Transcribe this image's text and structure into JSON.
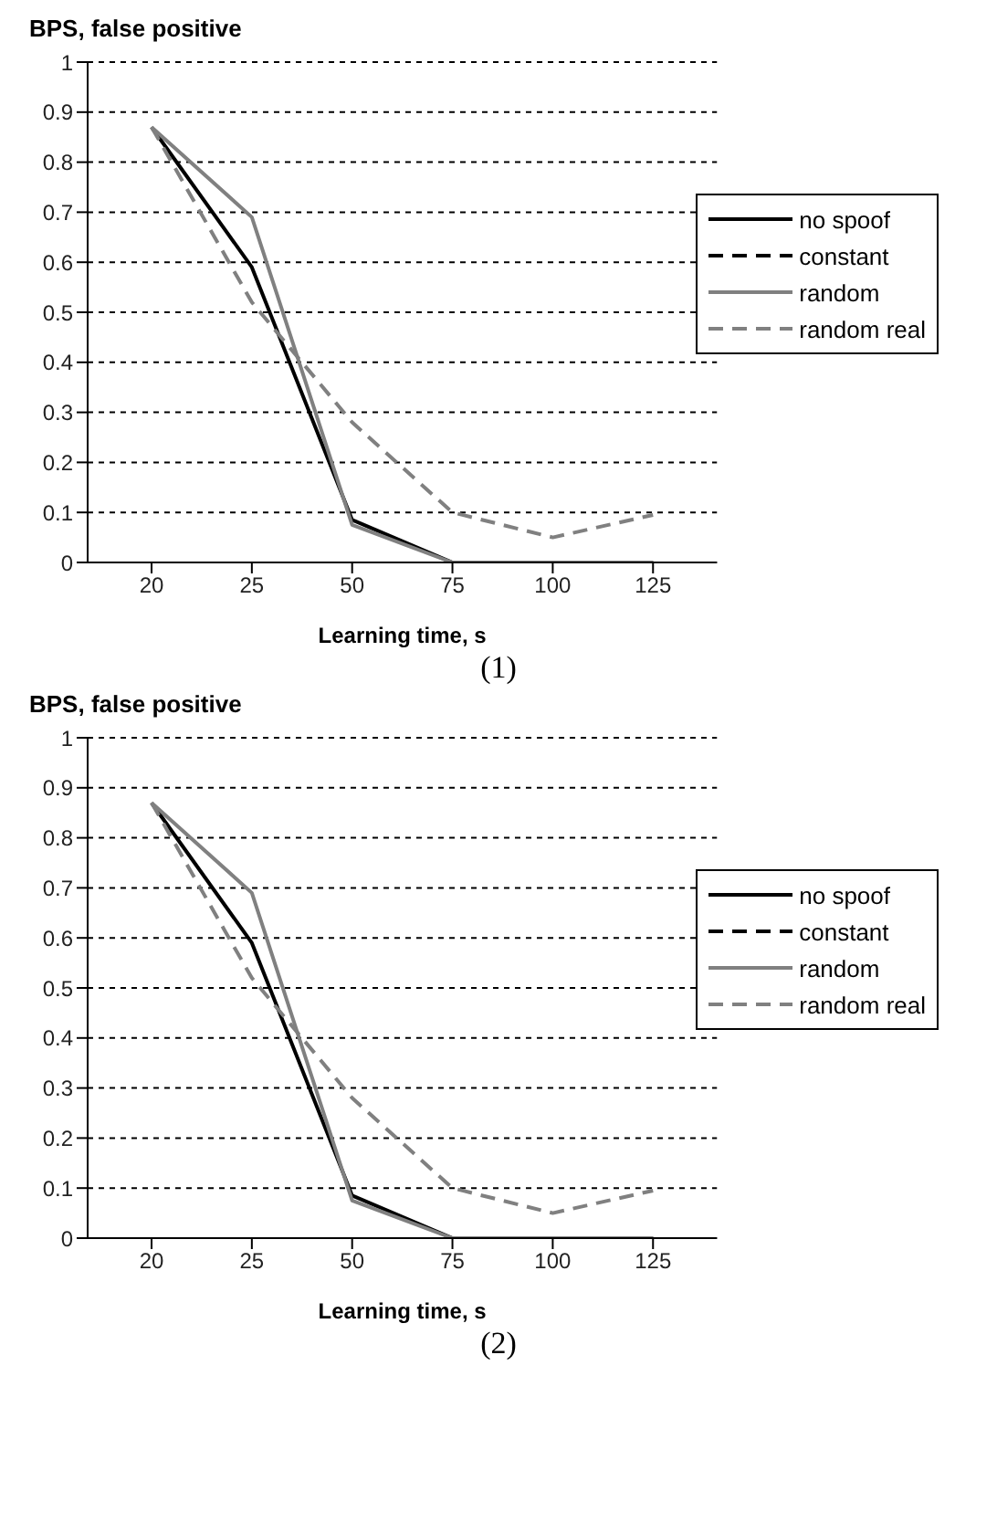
{
  "chart_data": [
    {
      "type": "line",
      "title": "BPS, false positive",
      "xlabel": "Learning time, s",
      "annotations": [
        "(1)"
      ],
      "categories": [
        "20",
        "25",
        "50",
        "75",
        "100",
        "125"
      ],
      "ylim": [
        0,
        1
      ],
      "yticks": [
        0,
        0.1,
        0.2,
        0.3,
        0.4,
        0.5,
        0.6,
        0.7,
        0.8,
        0.9,
        1
      ],
      "grid": "y",
      "legend": "right",
      "series": [
        {
          "name": "no spoof",
          "color": "#000000",
          "line_style": "solid",
          "values": [
            0.87,
            0.59,
            0.085,
            0,
            0,
            0
          ]
        },
        {
          "name": "constant",
          "color": "#000000",
          "line_style": "dashed",
          "values": [
            null,
            null,
            null,
            null,
            null,
            null
          ]
        },
        {
          "name": "random",
          "color": "#808080",
          "line_style": "solid",
          "values": [
            0.87,
            0.69,
            0.075,
            0,
            0,
            0
          ]
        },
        {
          "name": "random real",
          "color": "#808080",
          "line_style": "dashed",
          "values": [
            0.87,
            0.52,
            0.28,
            0.1,
            0.05,
            0.095
          ]
        }
      ]
    },
    {
      "type": "line",
      "title": "BPS, false positive",
      "xlabel": "Learning time, s",
      "annotations": [
        "(2)"
      ],
      "categories": [
        "20",
        "25",
        "50",
        "75",
        "100",
        "125"
      ],
      "ylim": [
        0,
        1
      ],
      "yticks": [
        0,
        0.1,
        0.2,
        0.3,
        0.4,
        0.5,
        0.6,
        0.7,
        0.8,
        0.9,
        1
      ],
      "grid": "y",
      "legend": "right",
      "series": [
        {
          "name": "no spoof",
          "color": "#000000",
          "line_style": "solid",
          "values": [
            0.87,
            0.59,
            0.085,
            0,
            0,
            0
          ]
        },
        {
          "name": "constant",
          "color": "#000000",
          "line_style": "dashed",
          "values": [
            null,
            null,
            null,
            null,
            null,
            null
          ]
        },
        {
          "name": "random",
          "color": "#808080",
          "line_style": "solid",
          "values": [
            0.87,
            0.69,
            0.075,
            0,
            0,
            0
          ]
        },
        {
          "name": "random real",
          "color": "#808080",
          "line_style": "dashed",
          "values": [
            0.87,
            0.52,
            0.28,
            0.1,
            0.05,
            0.095
          ]
        }
      ]
    }
  ]
}
